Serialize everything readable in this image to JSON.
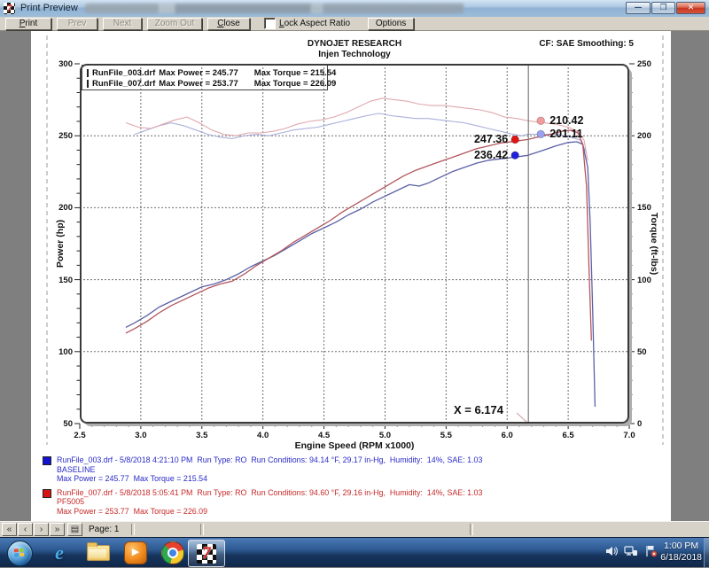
{
  "window": {
    "title": "Print Preview"
  },
  "toolbar": {
    "print": "Print",
    "prev": "Prev",
    "next": "Next",
    "zoom_out": "Zoom Out",
    "close": "Close",
    "lock_aspect_ratio": "Lock Aspect Ratio",
    "lock_aspect_checked": false,
    "options": "Options"
  },
  "report": {
    "company": "DYNOJET RESEARCH",
    "subtitle": "Injen Technology",
    "correction": "CF: SAE  Smoothing: 5",
    "legend": [
      {
        "file": "RunFile_003.drf",
        "power": "Max Power = 245.77",
        "torque": "Max Torque = 215.54",
        "color": "#1313cf"
      },
      {
        "file": "RunFile_007.drf",
        "power": "Max Power = 253.77",
        "torque": "Max Torque = 226.09",
        "color": "#d51515"
      }
    ],
    "runs": [
      {
        "color": "#2a2ac8",
        "swatch": "#1313cf",
        "line1": "RunFile_003.drf - 5/8/2018 4:21:10 PM  Run Type: RO  Run Conditions: 94.14 °F, 29.17 in-Hg,  Humidity:  14%, SAE: 1.03",
        "line2": "BASELINE",
        "line3": "Max Power = 245.77  Max Torque = 215.54"
      },
      {
        "color": "#c82a2a",
        "swatch": "#d51515",
        "line1": "RunFile_007.drf - 5/8/2018 5:05:41 PM  Run Type: RO  Run Conditions: 94.60 °F, 29.16 in-Hg,  Humidity:  14%, SAE: 1.03",
        "line2": "PF5005",
        "line3": "Max Power = 253.77  Max Torque = 226.09"
      }
    ]
  },
  "chart_data": {
    "type": "line",
    "title": "DYNOJET RESEARCH - Injen Technology",
    "xlabel": "Engine Speed (RPM x1000)",
    "ylabel_left": "Power (hp)",
    "ylabel_right": "Torque (ft-lbs)",
    "xlim": [
      2.5,
      7.0
    ],
    "ylim_left": [
      50,
      300
    ],
    "ylim_right": [
      0,
      250
    ],
    "x_ticks": [
      2.5,
      3.0,
      3.5,
      4.0,
      4.5,
      5.0,
      5.5,
      6.0,
      6.5,
      7.0
    ],
    "y_ticks_left": [
      300,
      250,
      200,
      150,
      100,
      50
    ],
    "y_ticks_right": [
      250,
      200,
      150,
      100,
      50,
      0
    ],
    "grid_x": [
      3.0,
      3.5,
      4.0,
      4.5,
      5.0,
      5.5,
      6.0,
      6.5
    ],
    "grid_y_left": [
      250,
      200,
      150,
      100
    ],
    "grid": true,
    "legend_position": "top-left",
    "cursor": {
      "x": 6.174,
      "label": "X = 6.174",
      "points": [
        {
          "series": "RunFile_007 Torque",
          "axis": "right",
          "value": 210.42,
          "label": "210.42",
          "dot_color": "#f29b9b",
          "label_side": "right"
        },
        {
          "series": "RunFile_003 Torque",
          "axis": "right",
          "value": 201.11,
          "label": "201.11",
          "dot_color": "#9aa1ee",
          "label_side": "right"
        },
        {
          "series": "RunFile_007 Power",
          "axis": "left",
          "value": 247.36,
          "label": "247.36",
          "dot_color": "#e01414",
          "label_side": "left"
        },
        {
          "series": "RunFile_003 Power",
          "axis": "left",
          "value": 236.42,
          "label": "236.42",
          "dot_color": "#2020d8",
          "label_side": "left"
        }
      ]
    },
    "series": [
      {
        "name": "RunFile_003 Torque",
        "axis": "right",
        "color": "#aab0da",
        "width": 1.1,
        "max": 215.54,
        "points": [
          [
            2.95,
            201
          ],
          [
            3.05,
            204
          ],
          [
            3.15,
            207
          ],
          [
            3.25,
            209
          ],
          [
            3.35,
            207
          ],
          [
            3.45,
            204
          ],
          [
            3.55,
            201
          ],
          [
            3.65,
            199
          ],
          [
            3.75,
            198
          ],
          [
            3.85,
            200
          ],
          [
            3.95,
            201
          ],
          [
            4.05,
            200
          ],
          [
            4.15,
            202
          ],
          [
            4.25,
            204
          ],
          [
            4.35,
            205
          ],
          [
            4.45,
            206
          ],
          [
            4.55,
            208
          ],
          [
            4.65,
            210
          ],
          [
            4.75,
            212
          ],
          [
            4.85,
            214
          ],
          [
            4.95,
            215.5
          ],
          [
            5.05,
            214
          ],
          [
            5.15,
            213
          ],
          [
            5.25,
            212
          ],
          [
            5.35,
            212
          ],
          [
            5.45,
            211
          ],
          [
            5.55,
            210
          ],
          [
            5.65,
            209
          ],
          [
            5.75,
            207
          ],
          [
            5.85,
            205
          ],
          [
            5.95,
            203
          ],
          [
            6.05,
            201
          ],
          [
            6.12,
            200
          ],
          [
            6.17,
            201.1
          ],
          [
            6.3,
            201
          ],
          [
            6.42,
            201
          ],
          [
            6.52,
            199
          ],
          [
            6.6,
            197
          ],
          [
            6.65,
            188
          ]
        ]
      },
      {
        "name": "RunFile_007 Torque",
        "axis": "right",
        "color": "#e0a8ae",
        "width": 1.1,
        "max": 226.09,
        "points": [
          [
            2.88,
            209
          ],
          [
            2.98,
            206
          ],
          [
            3.08,
            205
          ],
          [
            3.18,
            208
          ],
          [
            3.28,
            211
          ],
          [
            3.38,
            213
          ],
          [
            3.48,
            209
          ],
          [
            3.58,
            204
          ],
          [
            3.68,
            201
          ],
          [
            3.78,
            200
          ],
          [
            3.88,
            202
          ],
          [
            3.98,
            202
          ],
          [
            4.08,
            203
          ],
          [
            4.18,
            205
          ],
          [
            4.28,
            208
          ],
          [
            4.38,
            210
          ],
          [
            4.48,
            211
          ],
          [
            4.58,
            213
          ],
          [
            4.68,
            216
          ],
          [
            4.78,
            220
          ],
          [
            4.88,
            224
          ],
          [
            4.98,
            226.1
          ],
          [
            5.08,
            225
          ],
          [
            5.18,
            224
          ],
          [
            5.28,
            222
          ],
          [
            5.38,
            221
          ],
          [
            5.48,
            221
          ],
          [
            5.58,
            220
          ],
          [
            5.68,
            219
          ],
          [
            5.78,
            218
          ],
          [
            5.88,
            216
          ],
          [
            5.98,
            213
          ],
          [
            6.08,
            212
          ],
          [
            6.17,
            210.4
          ],
          [
            6.3,
            209
          ],
          [
            6.4,
            208
          ],
          [
            6.5,
            206
          ],
          [
            6.58,
            203
          ],
          [
            6.63,
            197
          ],
          [
            6.66,
            183
          ]
        ]
      },
      {
        "name": "RunFile_003 Power",
        "axis": "left",
        "color": "#5c60a6",
        "width": 1.3,
        "max": 245.77,
        "points": [
          [
            2.88,
            117
          ],
          [
            2.95,
            120
          ],
          [
            3.05,
            125
          ],
          [
            3.15,
            131
          ],
          [
            3.25,
            135
          ],
          [
            3.35,
            139
          ],
          [
            3.45,
            143
          ],
          [
            3.5,
            145
          ],
          [
            3.6,
            147
          ],
          [
            3.7,
            150
          ],
          [
            3.8,
            154
          ],
          [
            3.9,
            159
          ],
          [
            4.0,
            163
          ],
          [
            4.1,
            167
          ],
          [
            4.2,
            172
          ],
          [
            4.3,
            177
          ],
          [
            4.4,
            182
          ],
          [
            4.5,
            186
          ],
          [
            4.6,
            190
          ],
          [
            4.7,
            195
          ],
          [
            4.8,
            199
          ],
          [
            4.9,
            204
          ],
          [
            5.0,
            208
          ],
          [
            5.1,
            212
          ],
          [
            5.2,
            216
          ],
          [
            5.28,
            215
          ],
          [
            5.35,
            217
          ],
          [
            5.45,
            221
          ],
          [
            5.55,
            225
          ],
          [
            5.65,
            228
          ],
          [
            5.75,
            231
          ],
          [
            5.85,
            233
          ],
          [
            5.95,
            234
          ],
          [
            6.05,
            235
          ],
          [
            6.17,
            236.4
          ],
          [
            6.3,
            240
          ],
          [
            6.4,
            243
          ],
          [
            6.5,
            245.3
          ],
          [
            6.57,
            245.8
          ],
          [
            6.62,
            244
          ],
          [
            6.66,
            228
          ],
          [
            6.68,
            190
          ],
          [
            6.7,
            130
          ],
          [
            6.72,
            62
          ]
        ]
      },
      {
        "name": "RunFile_007 Power",
        "axis": "left",
        "color": "#b2555c",
        "width": 1.3,
        "max": 253.77,
        "points": [
          [
            2.88,
            113
          ],
          [
            2.95,
            116
          ],
          [
            3.05,
            121
          ],
          [
            3.15,
            127
          ],
          [
            3.25,
            132
          ],
          [
            3.35,
            136
          ],
          [
            3.45,
            140
          ],
          [
            3.55,
            144
          ],
          [
            3.65,
            147
          ],
          [
            3.75,
            149
          ],
          [
            3.85,
            154
          ],
          [
            3.95,
            160
          ],
          [
            4.05,
            165
          ],
          [
            4.15,
            170
          ],
          [
            4.25,
            176
          ],
          [
            4.35,
            181
          ],
          [
            4.45,
            186
          ],
          [
            4.55,
            191
          ],
          [
            4.65,
            197
          ],
          [
            4.75,
            202
          ],
          [
            4.85,
            207
          ],
          [
            4.95,
            212
          ],
          [
            5.05,
            217
          ],
          [
            5.15,
            222
          ],
          [
            5.25,
            226
          ],
          [
            5.35,
            229
          ],
          [
            5.45,
            232
          ],
          [
            5.55,
            235
          ],
          [
            5.65,
            238
          ],
          [
            5.75,
            241
          ],
          [
            5.85,
            243
          ],
          [
            5.95,
            245
          ],
          [
            6.05,
            246
          ],
          [
            6.17,
            247.4
          ],
          [
            6.25,
            249
          ],
          [
            6.35,
            251
          ],
          [
            6.45,
            253.2
          ],
          [
            6.52,
            253.8
          ],
          [
            6.58,
            252
          ],
          [
            6.62,
            244
          ],
          [
            6.65,
            215
          ],
          [
            6.67,
            160
          ],
          [
            6.69,
            108
          ]
        ]
      }
    ]
  },
  "statusbar": {
    "page": "Page: 1",
    "nav_first": "«",
    "nav_prev": "‹",
    "nav_next": "›",
    "nav_last": "»",
    "setup": "▤"
  },
  "taskbar": {
    "time": "1:00 PM",
    "date": "6/18/2018"
  }
}
